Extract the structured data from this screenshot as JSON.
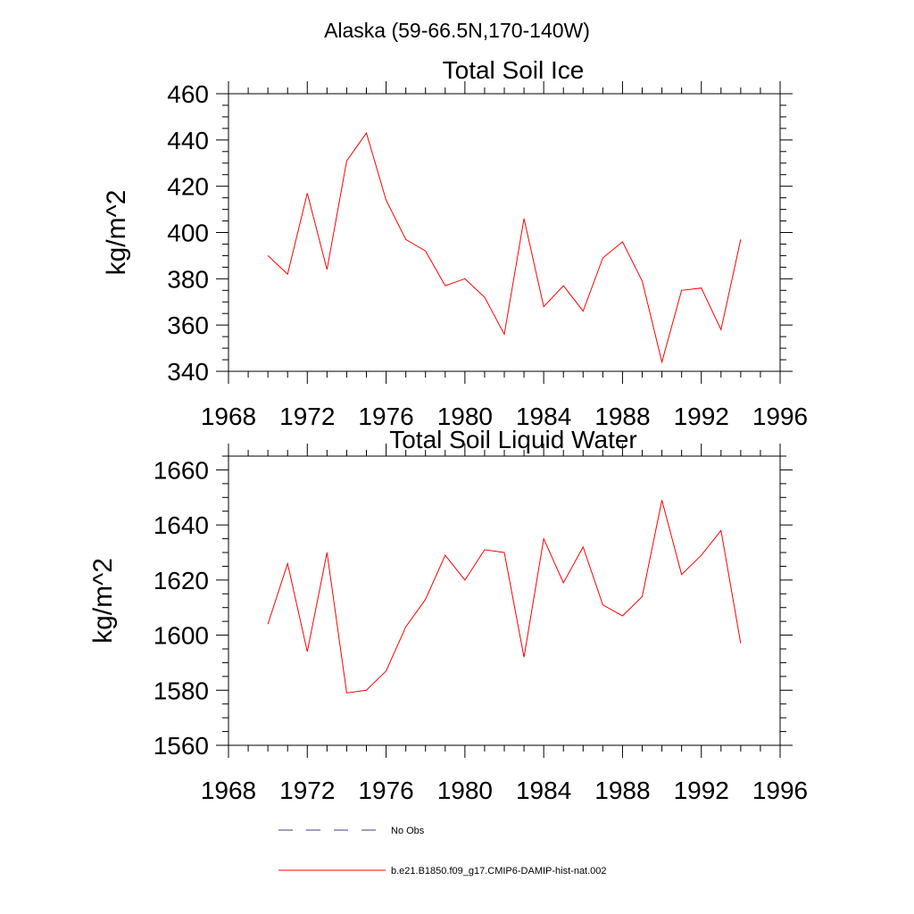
{
  "figure_title": "Alaska (59-66.5N,170-140W)",
  "chart_data": [
    {
      "type": "line",
      "title": "Total Soil Ice",
      "xlabel": "",
      "ylabel": "kg/m^2",
      "xlim": [
        1968,
        1996
      ],
      "ylim": [
        340,
        460
      ],
      "x_ticks": [
        1968,
        1972,
        1976,
        1980,
        1984,
        1988,
        1992,
        1996
      ],
      "y_ticks": [
        340,
        360,
        380,
        400,
        420,
        440,
        460
      ],
      "grid": false,
      "x": [
        1970,
        1971,
        1972,
        1973,
        1974,
        1975,
        1976,
        1977,
        1978,
        1979,
        1980,
        1981,
        1982,
        1983,
        1984,
        1985,
        1986,
        1987,
        1988,
        1989,
        1990,
        1991,
        1992,
        1993,
        1994
      ],
      "series": [
        {
          "name": "b.e21.B1850.f09_g17.CMIP6-DAMIP-hist-nat.002",
          "color": "#ff0000",
          "values": [
            390,
            382,
            417,
            384,
            431,
            443,
            414,
            397,
            392,
            377,
            380,
            372,
            356,
            406,
            368,
            377,
            366,
            389,
            396,
            379,
            344,
            375,
            376,
            358,
            397
          ]
        }
      ]
    },
    {
      "type": "line",
      "title": "Total Soil Liquid Water",
      "xlabel": "",
      "ylabel": "kg/m^2",
      "xlim": [
        1968,
        1996
      ],
      "ylim": [
        1560,
        1665
      ],
      "x_ticks": [
        1968,
        1972,
        1976,
        1980,
        1984,
        1988,
        1992,
        1996
      ],
      "y_ticks": [
        1560,
        1580,
        1600,
        1620,
        1640,
        1660
      ],
      "grid": false,
      "x": [
        1970,
        1971,
        1972,
        1973,
        1974,
        1975,
        1976,
        1977,
        1978,
        1979,
        1980,
        1981,
        1982,
        1983,
        1984,
        1985,
        1986,
        1987,
        1988,
        1989,
        1990,
        1991,
        1992,
        1993,
        1994
      ],
      "series": [
        {
          "name": "b.e21.B1850.f09_g17.CMIP6-DAMIP-hist-nat.002",
          "color": "#ff0000",
          "values": [
            1604,
            1626,
            1594,
            1630,
            1579,
            1580,
            1587,
            1603,
            1613,
            1629,
            1620,
            1631,
            1630,
            1592,
            1635,
            1619,
            1632,
            1611,
            1607,
            1614,
            1649,
            1622,
            1629,
            1638,
            1597
          ]
        }
      ]
    }
  ],
  "legend": {
    "placement": "bottom",
    "items": [
      {
        "label": "No Obs",
        "color": "#3a3f80",
        "style": "dashed"
      },
      {
        "label": "b.e21.B1850.f09_g17.CMIP6-DAMIP-hist-nat.002",
        "color": "#ff0000",
        "style": "solid"
      }
    ]
  }
}
